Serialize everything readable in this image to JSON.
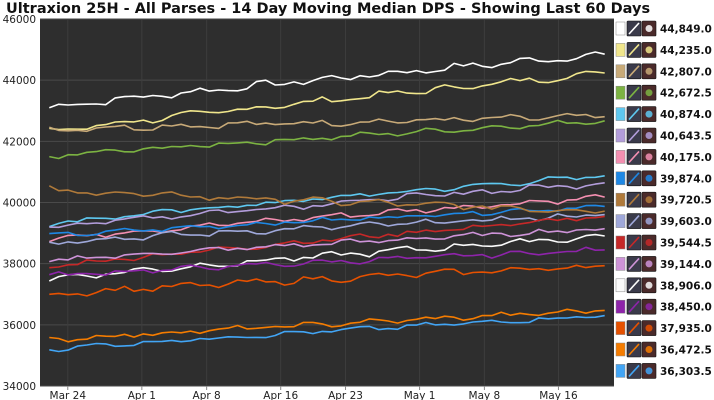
{
  "chart_data": {
    "type": "line",
    "title": "Ultraxion 25H - All Parses - 14 Day Moving Median DPS - Showing Last 60 Days",
    "xlabel": "",
    "ylabel": "",
    "ylim": [
      34000,
      46000
    ],
    "yticks": [
      34000,
      36000,
      38000,
      40000,
      42000,
      44000,
      46000
    ],
    "ytick_labels": [
      "34000",
      "36000",
      "38000",
      "40000",
      "42000",
      "44000",
      "46000"
    ],
    "x_range_days": [
      0,
      62
    ],
    "xticks": [
      {
        "label": "Mar 24",
        "day": 3
      },
      {
        "label": "Apr 1",
        "day": 11
      },
      {
        "label": "Apr 8",
        "day": 18
      },
      {
        "label": "Apr 16",
        "day": 26
      },
      {
        "label": "Apr 23",
        "day": 33
      },
      {
        "label": "May 1",
        "day": 41
      },
      {
        "label": "May 8",
        "day": 48
      },
      {
        "label": "May 16",
        "day": 56
      }
    ],
    "grid": true,
    "background": "#2e2e2e",
    "legend_position": "right",
    "series": [
      {
        "name": "44,849.0",
        "color": "#ffffff",
        "start": 43100,
        "end": 44849,
        "amp": 120
      },
      {
        "name": "44,235.0",
        "color": "#f0e68c",
        "start": 42300,
        "end": 44235,
        "amp": 110
      },
      {
        "name": "42,807.0",
        "color": "#c8aa78",
        "start": 42400,
        "end": 42807,
        "amp": 110
      },
      {
        "name": "42,672.5",
        "color": "#7cb342",
        "start": 41500,
        "end": 42672,
        "amp": 90
      },
      {
        "name": "40,874.0",
        "color": "#5ec8f0",
        "start": 39300,
        "end": 40874,
        "amp": 90
      },
      {
        "name": "40,643.5",
        "color": "#b39ddb",
        "start": 39200,
        "end": 40643,
        "amp": 110
      },
      {
        "name": "40,175.0",
        "color": "#f48fb1",
        "start": 38800,
        "end": 40175,
        "amp": 100
      },
      {
        "name": "39,874.0",
        "color": "#1e88e5",
        "start": 38900,
        "end": 39874,
        "amp": 80
      },
      {
        "name": "39,720.5",
        "color": "#b07a3a",
        "start": 40400,
        "end": 39720,
        "amp": 120
      },
      {
        "name": "39,603.0",
        "color": "#9fa8da",
        "start": 38700,
        "end": 39603,
        "amp": 100
      },
      {
        "name": "39,544.5",
        "color": "#c62828",
        "start": 37900,
        "end": 39544,
        "amp": 90
      },
      {
        "name": "39,144.0",
        "color": "#ce93d8",
        "start": 38100,
        "end": 39144,
        "amp": 90
      },
      {
        "name": "38,906.0",
        "color": "#fafafa",
        "start": 37500,
        "end": 38906,
        "amp": 110
      },
      {
        "name": "38,450.0",
        "color": "#8e24aa",
        "start": 37600,
        "end": 38450,
        "amp": 90
      },
      {
        "name": "37,935.0",
        "color": "#e65100",
        "start": 37000,
        "end": 37935,
        "amp": 110
      },
      {
        "name": "36,472.5",
        "color": "#f57c00",
        "start": 35500,
        "end": 36472,
        "amp": 90
      },
      {
        "name": "36,303.5",
        "color": "#42a5f5",
        "start": 35200,
        "end": 36303,
        "amp": 80
      }
    ]
  }
}
